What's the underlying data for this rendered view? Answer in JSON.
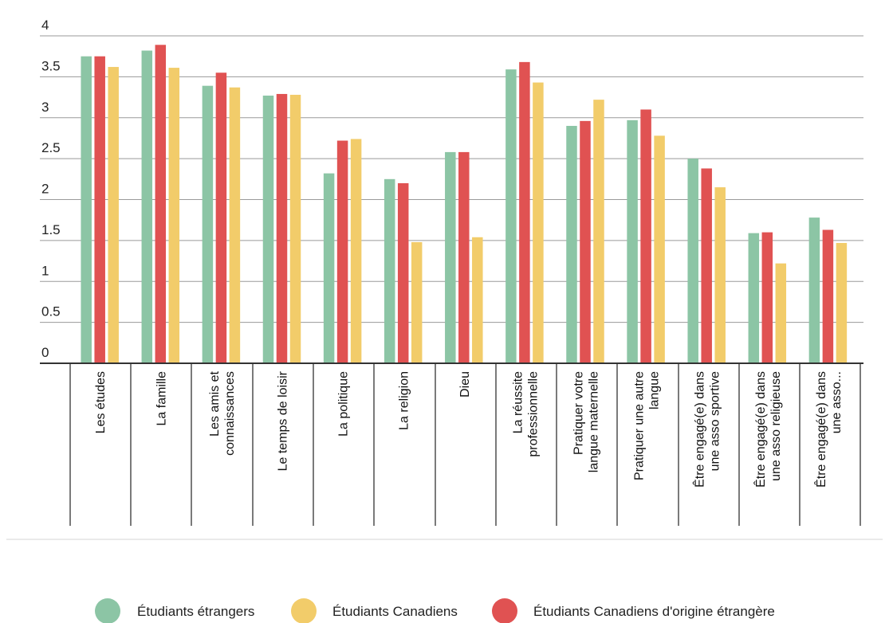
{
  "chart_data": {
    "type": "bar",
    "ylim": [
      0,
      4
    ],
    "yticks": [
      "0",
      "0.5",
      "1",
      "1.5",
      "2",
      "2.5",
      "3",
      "3.5",
      "4"
    ],
    "grid": true,
    "legend_position": "bottom",
    "categories": [
      [
        "Les études"
      ],
      [
        "La famille"
      ],
      [
        "Les amis et",
        "connaissances"
      ],
      [
        "Le temps de loisir"
      ],
      [
        "La politique"
      ],
      [
        "La religion"
      ],
      [
        "Dieu"
      ],
      [
        "La réussite",
        "professionnelle"
      ],
      [
        "Pratiquer votre",
        "langue maternelle"
      ],
      [
        "Pratiquer une autre",
        "langue"
      ],
      [
        "Être engagé(e) dans",
        "une asso sportive"
      ],
      [
        "Être engagé(e) dans",
        "une asso religieuse"
      ],
      [
        "Être engagé(e) dans",
        "une asso..."
      ]
    ],
    "series": [
      {
        "name": "Étudiants étrangers",
        "color": "#8cc5a5",
        "values": [
          3.75,
          3.82,
          3.39,
          3.27,
          2.32,
          2.25,
          2.58,
          3.59,
          2.9,
          2.97,
          2.5,
          1.59,
          1.78
        ]
      },
      {
        "name": "Étudiants Canadiens d'origine étrangère",
        "color": "#e05252",
        "values": [
          3.75,
          3.89,
          3.55,
          3.29,
          2.72,
          2.2,
          2.58,
          3.68,
          2.96,
          3.1,
          2.38,
          1.6,
          1.63
        ]
      },
      {
        "name": "Étudiants Canadiens",
        "color": "#f2cc6a",
        "values": [
          3.62,
          3.61,
          3.37,
          3.28,
          2.74,
          1.48,
          1.54,
          3.43,
          3.22,
          2.78,
          2.15,
          1.22,
          1.47
        ]
      }
    ],
    "legend_order": [
      0,
      2,
      1
    ]
  }
}
